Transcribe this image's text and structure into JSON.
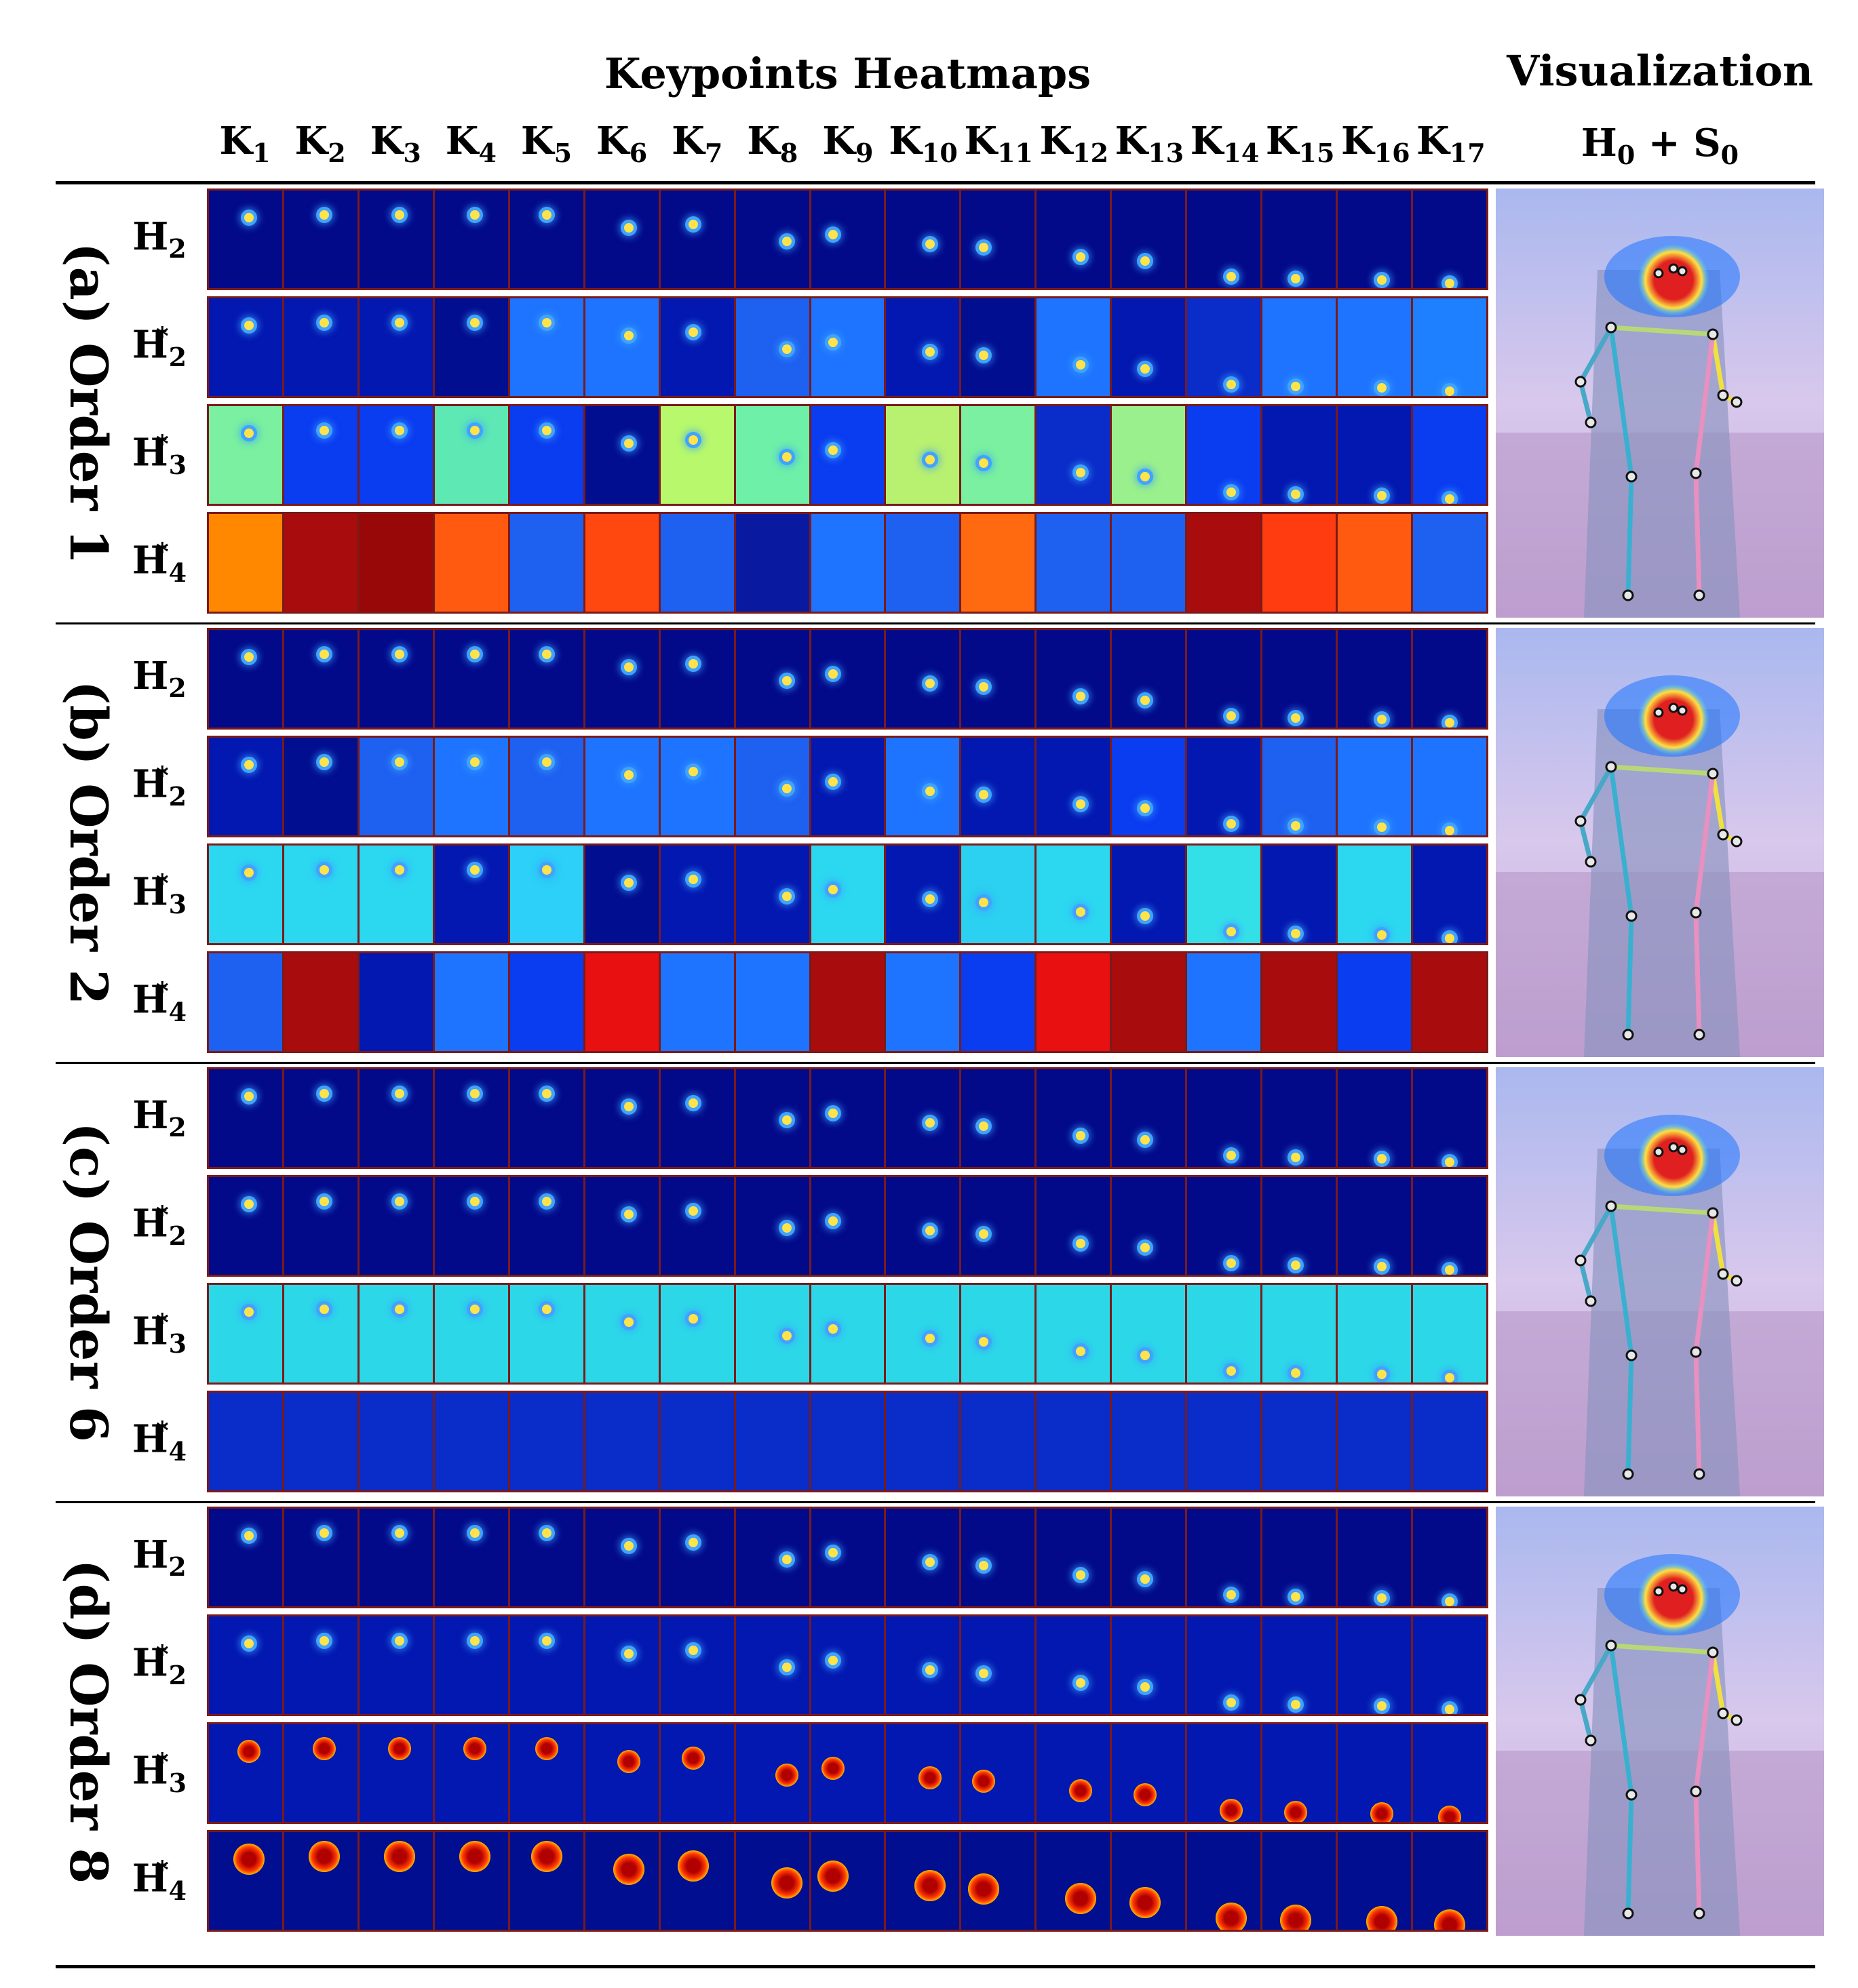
{
  "header": {
    "title": "Keypoints Heatmaps",
    "vis_title": "Visualization",
    "vis_sub": {
      "a": "H",
      "a_sub": "0",
      "op": " + ",
      "b": "S",
      "b_sub": "0"
    }
  },
  "keypoints": [
    {
      "base": "K",
      "sub": "1"
    },
    {
      "base": "K",
      "sub": "2"
    },
    {
      "base": "K",
      "sub": "3"
    },
    {
      "base": "K",
      "sub": "4"
    },
    {
      "base": "K",
      "sub": "5"
    },
    {
      "base": "K",
      "sub": "6"
    },
    {
      "base": "K",
      "sub": "7"
    },
    {
      "base": "K",
      "sub": "8"
    },
    {
      "base": "K",
      "sub": "9"
    },
    {
      "base": "K",
      "sub": "10"
    },
    {
      "base": "K",
      "sub": "11"
    },
    {
      "base": "K",
      "sub": "12"
    },
    {
      "base": "K",
      "sub": "13"
    },
    {
      "base": "K",
      "sub": "14"
    },
    {
      "base": "K",
      "sub": "15"
    },
    {
      "base": "K",
      "sub": "16"
    },
    {
      "base": "K",
      "sub": "17"
    }
  ],
  "row_labels": [
    {
      "base": "H",
      "sub": "2",
      "sup": ""
    },
    {
      "base": "H",
      "sub": "2",
      "sup": "*"
    },
    {
      "base": "H",
      "sub": "3",
      "sup": "*"
    },
    {
      "base": "H",
      "sub": "4",
      "sup": "*"
    }
  ],
  "groups": [
    {
      "label": "(a) Order 1",
      "rows": [
        [
          "#020a8a",
          "#020a8a",
          "#020a8a",
          "#020a8a",
          "#020a8a",
          "#020a8a",
          "#020a8a",
          "#020a8a",
          "#020a8a",
          "#020a8a",
          "#020a8a",
          "#020a8a",
          "#020a8a",
          "#020a8a",
          "#020a8a",
          "#020a8a",
          "#020a8a"
        ],
        [
          "#0318b0",
          "#0318b0",
          "#0318b0",
          "#020e90",
          "#1e74ff",
          "#1e74ff",
          "#0318b0",
          "#1e60f0",
          "#1e74ff",
          "#0318b0",
          "#020e90",
          "#1e74ff",
          "#0318b0",
          "#0a2cc8",
          "#1e74ff",
          "#1e74ff",
          "#1e80ff"
        ],
        [
          "#7af0a0",
          "#0a3cf0",
          "#0a3cf0",
          "#5ee8b4",
          "#0a3cf0",
          "#020e90",
          "#b8f86c",
          "#6ef0a8",
          "#0a3cf0",
          "#b8f070",
          "#7af0a0",
          "#0a2cc8",
          "#9af08c",
          "#0a3cf0",
          "#0318b0",
          "#0318b0",
          "#0a3cf0"
        ],
        [
          "#ff8800",
          "#a80c0c",
          "#980808",
          "#ff5a10",
          "#1e60f0",
          "#ff4810",
          "#1e60f0",
          "#0a1aa0",
          "#1e74ff",
          "#1e60f0",
          "#ff6a10",
          "#1e60f0",
          "#1e60f0",
          "#a80c0c",
          "#ff3c10",
          "#ff5a10",
          "#1e60f0"
        ]
      ]
    },
    {
      "label": "(b) Order 2",
      "rows": [
        [
          "#020a8a",
          "#020a8a",
          "#020a8a",
          "#020a8a",
          "#020a8a",
          "#020a8a",
          "#020a8a",
          "#020a8a",
          "#020a8a",
          "#020a8a",
          "#020a8a",
          "#020a8a",
          "#020a8a",
          "#020a8a",
          "#020a8a",
          "#020a8a",
          "#020a8a"
        ],
        [
          "#0318b0",
          "#020e90",
          "#1e60f0",
          "#1e74ff",
          "#1e60f0",
          "#1e74ff",
          "#1e74ff",
          "#1e60f0",
          "#0318b0",
          "#1e74ff",
          "#0318b0",
          "#0318b0",
          "#0a3cf0",
          "#0318b0",
          "#1e60f0",
          "#1e74ff",
          "#1e74ff"
        ],
        [
          "#2cd8f0",
          "#2cd8f0",
          "#2cd8f0",
          "#0318b0",
          "#2cd0f8",
          "#020e90",
          "#0318b0",
          "#0318b0",
          "#2cd8f0",
          "#0318b0",
          "#2cd0f0",
          "#2cd8f0",
          "#0318b0",
          "#34e0e8",
          "#0318b0",
          "#2cd8f0",
          "#0318b0"
        ],
        [
          "#1e60f0",
          "#a80c0c",
          "#0318b0",
          "#1e74ff",
          "#0a3cf0",
          "#e81010",
          "#1e74ff",
          "#1e74ff",
          "#a80c0c",
          "#1e74ff",
          "#0a3cf0",
          "#e81010",
          "#a80c0c",
          "#1e74ff",
          "#a80c0c",
          "#0a3cf0",
          "#a80c0c"
        ]
      ]
    },
    {
      "label": "(c) Order 6",
      "rows": [
        [
          "#020a8a",
          "#020a8a",
          "#020a8a",
          "#020a8a",
          "#020a8a",
          "#020a8a",
          "#020a8a",
          "#020a8a",
          "#020a8a",
          "#020a8a",
          "#020a8a",
          "#020a8a",
          "#020a8a",
          "#020a8a",
          "#020a8a",
          "#020a8a",
          "#020a8a"
        ],
        [
          "#020a8a",
          "#020a8a",
          "#020a8a",
          "#020a8a",
          "#020a8a",
          "#020a8a",
          "#020a8a",
          "#020a8a",
          "#020a8a",
          "#020a8a",
          "#020a8a",
          "#020a8a",
          "#020a8a",
          "#020a8a",
          "#020a8a",
          "#020a8a",
          "#020a8a"
        ],
        [
          "#2cd8e8",
          "#2cd8e8",
          "#2cd8e8",
          "#2cd8e8",
          "#2cd8e8",
          "#2cd8e8",
          "#2cd8e8",
          "#2cd8e8",
          "#2cd8e8",
          "#2cd8e8",
          "#2cd8e8",
          "#2cd8e8",
          "#2cd8e8",
          "#2cd8e8",
          "#2cd8e8",
          "#2cd8e8",
          "#2cd8e8"
        ],
        [
          "#0a2cc8",
          "#0a2cc8",
          "#0a2cc8",
          "#0a2cc8",
          "#0a2cc8",
          "#0a2cc8",
          "#0a2cc8",
          "#0a2cc8",
          "#0a2cc8",
          "#0a2cc8",
          "#0a2cc8",
          "#0a2cc8",
          "#0a2cc8",
          "#0a2cc8",
          "#0a2cc8",
          "#0a2cc8",
          "#0a2cc8"
        ]
      ]
    },
    {
      "label": "(d) Order 8",
      "rows": [
        [
          "#020a8a",
          "#020a8a",
          "#020a8a",
          "#020a8a",
          "#020a8a",
          "#020a8a",
          "#020a8a",
          "#020a8a",
          "#020a8a",
          "#020a8a",
          "#020a8a",
          "#020a8a",
          "#020a8a",
          "#020a8a",
          "#020a8a",
          "#020a8a",
          "#020a8a"
        ],
        [
          "#0318b0",
          "#0318b0",
          "#0318b0",
          "#0318b0",
          "#0318b0",
          "#0318b0",
          "#0318b0",
          "#0318b0",
          "#0318b0",
          "#0318b0",
          "#0318b0",
          "#0318b0",
          "#0318b0",
          "#0318b0",
          "#0318b0",
          "#0318b0",
          "#0318b0"
        ],
        [
          "#0318b0",
          "#0318b0",
          "#0318b0",
          "#0318b0",
          "#0318b0",
          "#0318b0",
          "#0318b0",
          "#0318b0",
          "#0318b0",
          "#0318b0",
          "#0318b0",
          "#0318b0",
          "#0318b0",
          "#0318b0",
          "#0318b0",
          "#0318b0",
          "#0318b0"
        ],
        [
          "#020e90",
          "#020e90",
          "#020e90",
          "#020e90",
          "#020e90",
          "#020e90",
          "#020e90",
          "#020e90",
          "#020e90",
          "#020e90",
          "#020e90",
          "#020e90",
          "#020e90",
          "#020e90",
          "#020e90",
          "#020e90",
          "#020e90"
        ]
      ]
    }
  ]
}
